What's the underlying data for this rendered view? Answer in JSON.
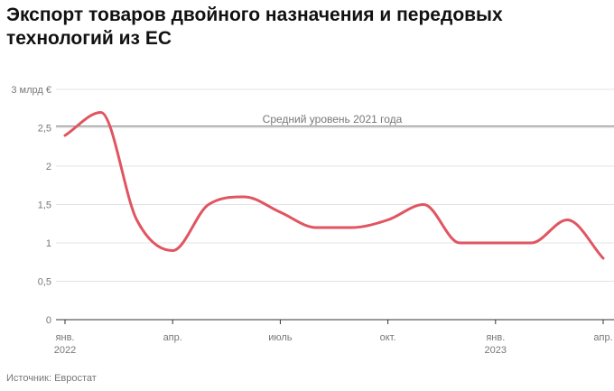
{
  "title": "Экспорт товаров двойного назначения и передовых технологий из ЕС",
  "source": "Источник: Евростат",
  "colors": {
    "line": "#e05561",
    "grid": "#e3e3e3",
    "reference": "#6e6e6e",
    "axis": "#333333",
    "label": "#777777"
  },
  "chart_data": {
    "type": "line",
    "title": "Экспорт товаров двойного назначения и передовых технологий из ЕС",
    "ylabel": "3 млрд €",
    "ylim": [
      0,
      3
    ],
    "yticks": [
      {
        "value": 0,
        "label": "0"
      },
      {
        "value": 0.5,
        "label": "0,5"
      },
      {
        "value": 1,
        "label": "1"
      },
      {
        "value": 1.5,
        "label": "1,5"
      },
      {
        "value": 2,
        "label": "2"
      },
      {
        "value": 2.5,
        "label": "2,5"
      },
      {
        "value": 3,
        "label": "3 млрд €"
      }
    ],
    "xlim": [
      "2022-01",
      "2023-04"
    ],
    "xticks": [
      {
        "x": "2022-01",
        "label": "янв.",
        "sublabel": "2022"
      },
      {
        "x": "2022-04",
        "label": "апр.",
        "sublabel": ""
      },
      {
        "x": "2022-07",
        "label": "июль",
        "sublabel": ""
      },
      {
        "x": "2022-10",
        "label": "окт.",
        "sublabel": ""
      },
      {
        "x": "2023-01",
        "label": "янв.",
        "sublabel": "2023"
      },
      {
        "x": "2023-04",
        "label": "апр.",
        "sublabel": ""
      }
    ],
    "grid": true,
    "reference_line": {
      "value": 2.52,
      "label": "Средний уровень 2021 года"
    },
    "series": [
      {
        "name": "",
        "x": [
          "2022-01",
          "2022-02",
          "2022-03",
          "2022-04",
          "2022-05",
          "2022-06",
          "2022-07",
          "2022-08",
          "2022-09",
          "2022-10",
          "2022-11",
          "2022-12",
          "2023-01",
          "2023-02",
          "2023-03",
          "2023-04"
        ],
        "values": [
          2.4,
          2.7,
          1.3,
          0.9,
          1.5,
          1.6,
          1.4,
          1.2,
          1.2,
          1.3,
          1.5,
          1.0,
          1.0,
          1.0,
          1.3,
          0.8
        ]
      }
    ]
  }
}
